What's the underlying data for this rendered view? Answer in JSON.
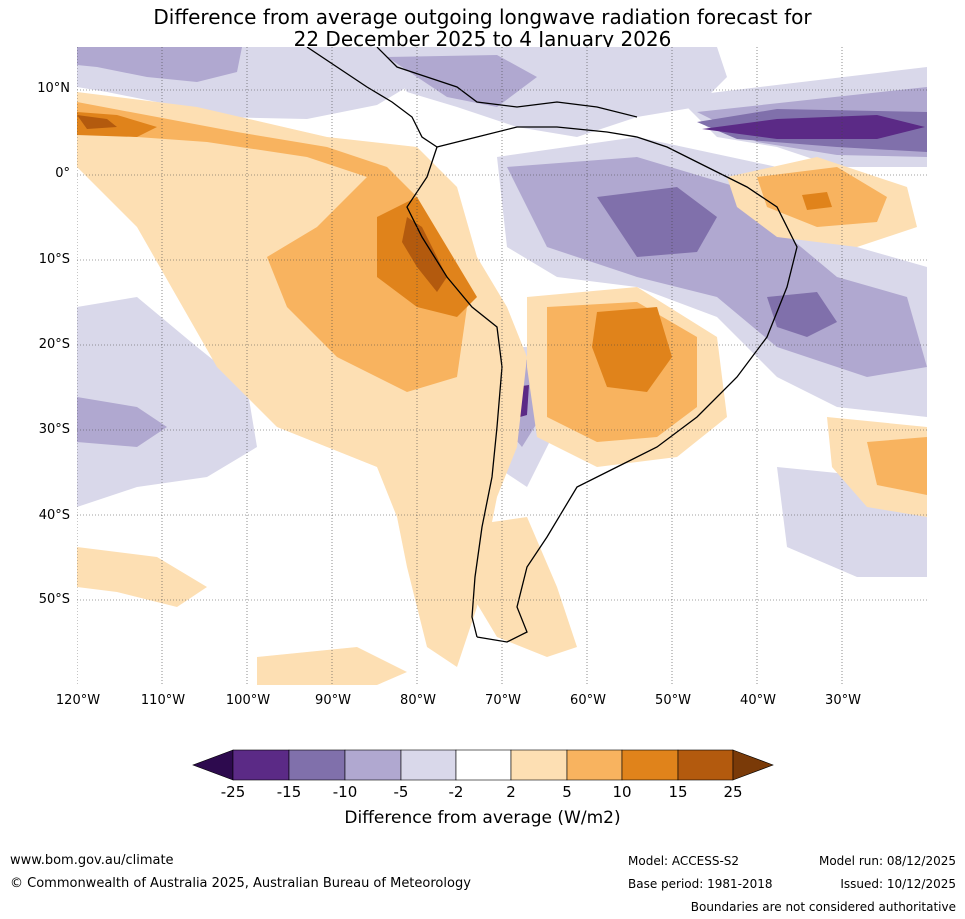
{
  "title": {
    "line1": "Difference from average outgoing longwave radiation forecast for",
    "line2": "22 December 2025 to 4 January 2026"
  },
  "map": {
    "lat_ticks": [
      "10°N",
      "0°",
      "10°S",
      "20°S",
      "30°S",
      "40°S",
      "50°S"
    ],
    "lon_ticks": [
      "120°W",
      "110°W",
      "100°W",
      "90°W",
      "80°W",
      "70°W",
      "60°W",
      "50°W",
      "40°W",
      "30°W"
    ]
  },
  "legend": {
    "levels": [
      "-25",
      "-15",
      "-10",
      "-5",
      "-2",
      "2",
      "5",
      "10",
      "15",
      "25"
    ],
    "colors": [
      "#2d0a4e",
      "#5b2a86",
      "#8070ab",
      "#b0a8d0",
      "#d9d8ea",
      "#ffffff",
      "#fddfb3",
      "#f8b35f",
      "#e0831b",
      "#b35a0e",
      "#7a3a08"
    ],
    "title": "Difference from average (W/m2)"
  },
  "footer": {
    "website": "www.bom.gov.au/climate",
    "copyright": "© Commonwealth of Australia 2025, Australian Bureau of Meteorology",
    "model": "Model: ACCESS-S2",
    "base_period": "Base period: 1981-2018",
    "model_run": "Model run: 08/12/2025",
    "issued": "Issued: 10/12/2025",
    "disclaimer": "Boundaries are not considered authoritative"
  }
}
